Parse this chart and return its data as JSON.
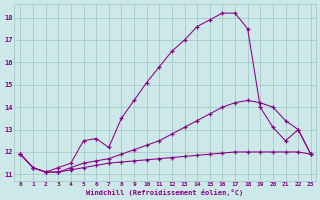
{
  "xlabel": "Windchill (Refroidissement éolien,°C)",
  "bg_color": "#cce8e8",
  "grid_color": "#a0c4c4",
  "line_color": "#880088",
  "xlim_min": -0.5,
  "xlim_max": 23.4,
  "ylim_min": 10.7,
  "ylim_max": 18.6,
  "xticks": [
    0,
    1,
    2,
    3,
    4,
    5,
    6,
    7,
    8,
    9,
    10,
    11,
    12,
    13,
    14,
    15,
    16,
    17,
    18,
    19,
    20,
    21,
    22,
    23
  ],
  "yticks": [
    11,
    12,
    13,
    14,
    15,
    16,
    17,
    18
  ],
  "line1_x": [
    0,
    1,
    2,
    3,
    4,
    5,
    6,
    7,
    8,
    9,
    10,
    11,
    12,
    13,
    14,
    15,
    16,
    17,
    18,
    19,
    20,
    21,
    22,
    23
  ],
  "line1_y": [
    11.9,
    11.3,
    11.1,
    11.1,
    11.2,
    11.3,
    11.4,
    11.5,
    11.55,
    11.6,
    11.65,
    11.7,
    11.75,
    11.8,
    11.85,
    11.9,
    11.95,
    12.0,
    12.0,
    12.0,
    12.0,
    12.0,
    12.0,
    11.9
  ],
  "line2_x": [
    0,
    1,
    2,
    3,
    4,
    5,
    6,
    7,
    8,
    9,
    10,
    11,
    12,
    13,
    14,
    15,
    16,
    17,
    18,
    19,
    20,
    21,
    22,
    23
  ],
  "line2_y": [
    11.9,
    11.3,
    11.1,
    11.1,
    11.3,
    11.5,
    11.6,
    11.7,
    11.9,
    12.1,
    12.3,
    12.5,
    12.8,
    13.1,
    13.4,
    13.7,
    14.0,
    14.2,
    14.3,
    14.2,
    14.0,
    13.4,
    13.0,
    11.9
  ],
  "line3_x": [
    0,
    1,
    2,
    3,
    4,
    5,
    6,
    7,
    8,
    9,
    10,
    11,
    12,
    13,
    14,
    15,
    16,
    17,
    18,
    19,
    20,
    21,
    22,
    23
  ],
  "line3_y": [
    11.9,
    11.3,
    11.1,
    11.3,
    11.5,
    12.5,
    12.6,
    12.2,
    13.5,
    14.3,
    15.1,
    15.8,
    16.5,
    17.0,
    17.6,
    17.9,
    18.2,
    18.2,
    17.5,
    14.0,
    13.1,
    12.5,
    13.0,
    11.9
  ]
}
